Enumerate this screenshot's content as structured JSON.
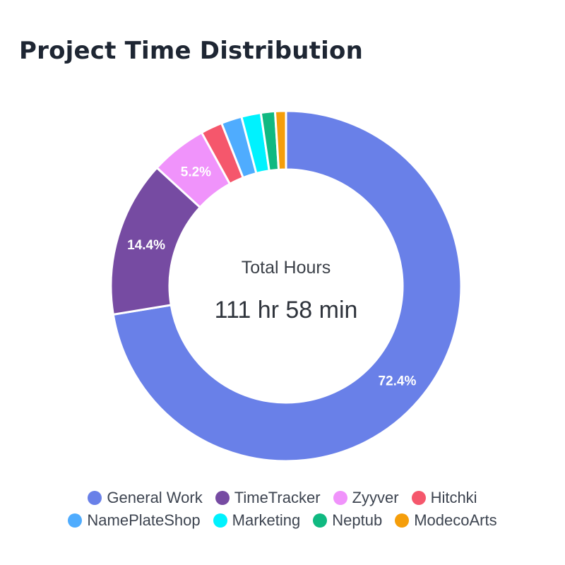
{
  "title": "Project Time Distribution",
  "center": {
    "label": "Total Hours",
    "value": "111 hr 58 min"
  },
  "chart_data": {
    "type": "pie",
    "donut": true,
    "title": "Project Time Distribution",
    "center_text": [
      "Total Hours",
      "111 hr 58 min"
    ],
    "legend_position": "bottom",
    "series": [
      {
        "name": "General Work",
        "value": 72.4,
        "label": "72.4%",
        "color": "#6980e8"
      },
      {
        "name": "TimeTracker",
        "value": 14.4,
        "label": "14.4%",
        "color": "#764ba2"
      },
      {
        "name": "Zyyver",
        "value": 5.2,
        "label": "5.2%",
        "color": "#f093fb"
      },
      {
        "name": "Hitchki",
        "value": 2.0,
        "label": "",
        "color": "#f5576c"
      },
      {
        "name": "NamePlateShop",
        "value": 1.9,
        "label": "",
        "color": "#4facfe"
      },
      {
        "name": "Marketing",
        "value": 1.8,
        "label": "",
        "color": "#00f2fe"
      },
      {
        "name": "Neptub",
        "value": 1.3,
        "label": "",
        "color": "#10b981"
      },
      {
        "name": "ModecoArts",
        "value": 1.0,
        "label": "",
        "color": "#f59e0b"
      }
    ]
  }
}
